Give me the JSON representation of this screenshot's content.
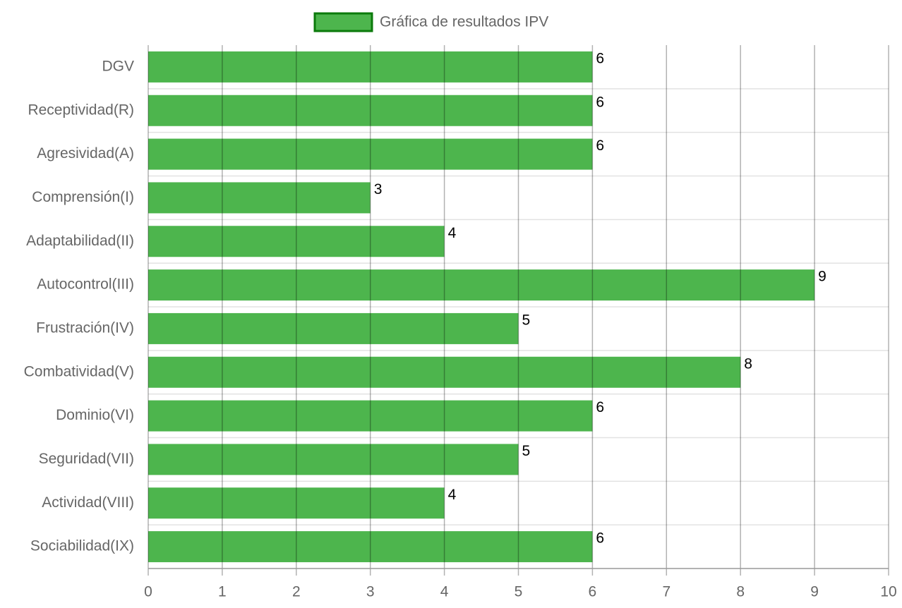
{
  "chart_data": {
    "type": "bar",
    "orientation": "horizontal",
    "categories": [
      "DGV",
      "Receptividad(R)",
      "Agresividad(A)",
      "Comprensión(I)",
      "Adaptabilidad(II)",
      "Autocontrol(III)",
      "Frustración(IV)",
      "Combatividad(V)",
      "Dominio(VI)",
      "Seguridad(VII)",
      "Actividad(VIII)",
      "Sociabilidad(IX)"
    ],
    "series": [
      {
        "name": "Gráfica de resultados IPV",
        "color": "#4db54d",
        "border_color": "#0b7a0b",
        "values": [
          6,
          6,
          6,
          3,
          4,
          9,
          5,
          8,
          6,
          5,
          4,
          6
        ]
      }
    ],
    "xlim": [
      0,
      10
    ],
    "xticks": [
      0,
      1,
      2,
      3,
      4,
      5,
      6,
      7,
      8,
      9,
      10
    ],
    "grid": true,
    "legend": "top"
  }
}
